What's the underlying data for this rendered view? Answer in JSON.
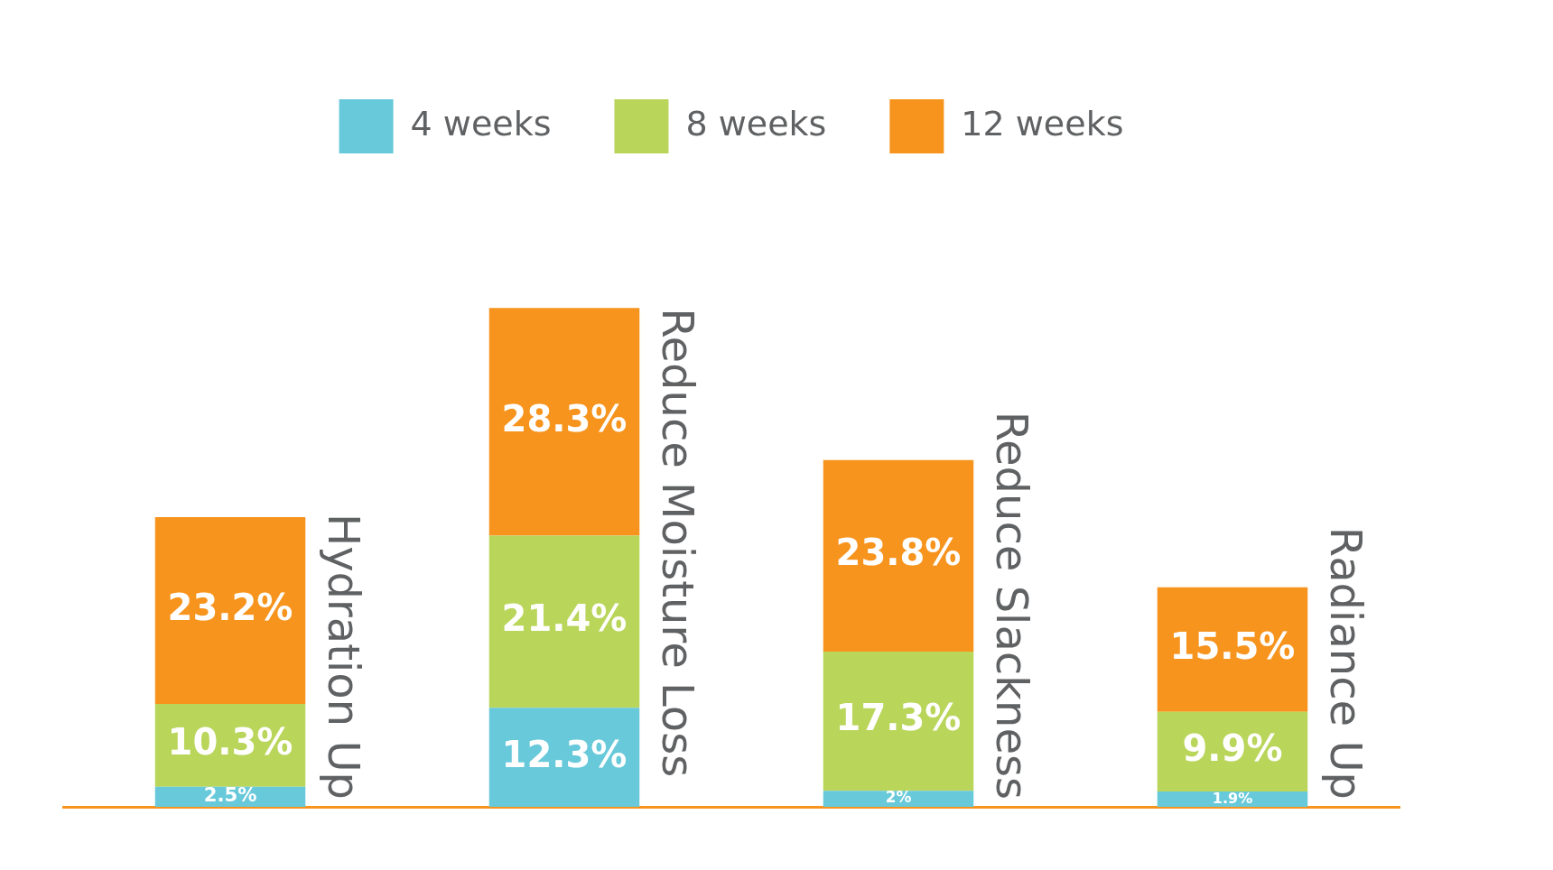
{
  "chart_data": {
    "type": "bar",
    "stacked": true,
    "legend": "top",
    "grid": false,
    "categories": [
      "Hydration Up",
      "Reduce Moisture Loss",
      "Reduce Slackness",
      "Radiance Up"
    ],
    "series": [
      {
        "name": "4 weeks",
        "color": "#67c9d9",
        "values": [
          2.5,
          12.3,
          2,
          1.9
        ],
        "value_labels": [
          "2.5%",
          "12.3%",
          "2%",
          "1.9%"
        ]
      },
      {
        "name": "8 weeks",
        "color": "#b9d55a",
        "values": [
          10.3,
          21.4,
          17.3,
          9.9
        ],
        "value_labels": [
          "10.3%",
          "21.4%",
          "17.3%",
          "9.9%"
        ]
      },
      {
        "name": "12 weeks",
        "color": "#f7941e",
        "values": [
          23.2,
          28.3,
          23.8,
          15.5
        ],
        "value_labels": [
          "23.2%",
          "28.3%",
          "23.8%",
          "15.5%"
        ]
      }
    ]
  }
}
